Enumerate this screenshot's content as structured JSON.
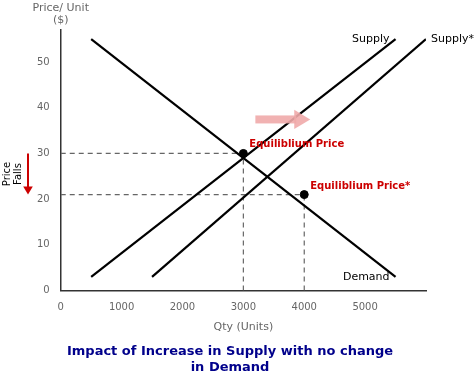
{
  "chart_data": {
    "type": "line",
    "title": "Impact of Increase in Supply with no change\nin Demand",
    "title_color": "#00008B",
    "x_label": "Qty (Units)",
    "y_label": "Price/ Unit\n($)",
    "xlim": [
      0,
      6000
    ],
    "ylim": [
      0,
      57
    ],
    "xticks": [
      0,
      1000,
      2000,
      3000,
      4000,
      5000
    ],
    "yticks": [
      0,
      10,
      20,
      30,
      40,
      50
    ],
    "grid": false,
    "series": [
      {
        "name": "Demand",
        "color": "#000000",
        "x": [
          500,
          5500
        ],
        "values": [
          55,
          3
        ]
      },
      {
        "name": "Supply",
        "color": "#000000",
        "x": [
          500,
          5500
        ],
        "values": [
          3,
          55
        ]
      },
      {
        "name": "Supply*",
        "color": "#000000",
        "x": [
          1500,
          6000
        ],
        "values": [
          3,
          55
        ]
      }
    ],
    "annotations": [
      {
        "text": "Equiliblium Price",
        "x": 3000,
        "y": 30,
        "color": "#CC0000"
      },
      {
        "text": "Equiliblium Price*",
        "x": 4000,
        "y": 21,
        "color": "#CC0000"
      }
    ],
    "price_change_label": "Price\nFalls",
    "price_change_color": "#CC0000"
  }
}
